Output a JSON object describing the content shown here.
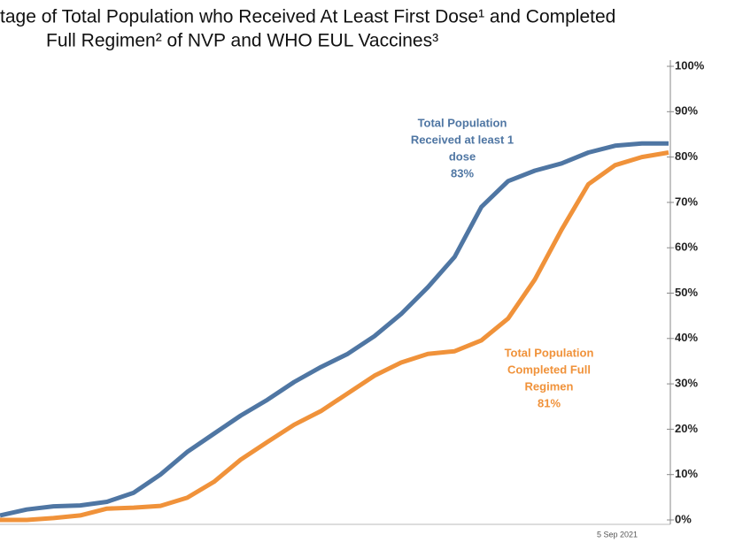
{
  "chart_data": {
    "type": "line",
    "title": [
      "tage of Total Population who Received At Least First Dose¹ and Completed",
      "Full Regimen²  of NVP and WHO EUL Vaccines³"
    ],
    "categories": [
      null,
      null,
      null,
      null,
      null,
      null,
      null,
      null,
      null,
      null,
      null,
      null,
      null,
      null,
      null,
      null,
      null,
      null,
      null,
      null,
      null,
      null,
      null,
      null,
      null,
      null
    ],
    "series": [
      {
        "name": [
          "Total Population",
          "Received at least 1",
          "dose",
          "83%"
        ],
        "color": "#4f76a3",
        "values": [
          1,
          2.3,
          3,
          3.2,
          4,
          6,
          10,
          15,
          19,
          23,
          26.5,
          30.4,
          33.7,
          36.6,
          40.5,
          45.4,
          51.3,
          58,
          69,
          74.7,
          77,
          78.6,
          81,
          82.5,
          83,
          83
        ]
      },
      {
        "name": [
          "Total Population",
          "Completed Full",
          "Regimen",
          "81%"
        ],
        "color": "#f0923a",
        "values": [
          0,
          0,
          0.4,
          1,
          2.5,
          2.7,
          3.1,
          4.9,
          8.4,
          13.3,
          17.2,
          21,
          24,
          27.9,
          31.8,
          34.7,
          36.6,
          37.2,
          39.6,
          44.4,
          53,
          64,
          74,
          78.2,
          80,
          81
        ]
      }
    ],
    "ylim": [
      0,
      100
    ],
    "yticks": [
      {
        "value": 0,
        "label": "0%"
      },
      {
        "value": 10,
        "label": "10%"
      },
      {
        "value": 20,
        "label": "20%"
      },
      {
        "value": 30,
        "label": "30%"
      },
      {
        "value": 40,
        "label": "40%"
      },
      {
        "value": 50,
        "label": "50%"
      },
      {
        "value": 60,
        "label": "60%"
      },
      {
        "value": 70,
        "label": "70%"
      },
      {
        "value": 80,
        "label": "80%"
      },
      {
        "value": 90,
        "label": "90%"
      },
      {
        "value": 100,
        "label": "100%"
      }
    ],
    "note": "5 Sep 2021"
  }
}
